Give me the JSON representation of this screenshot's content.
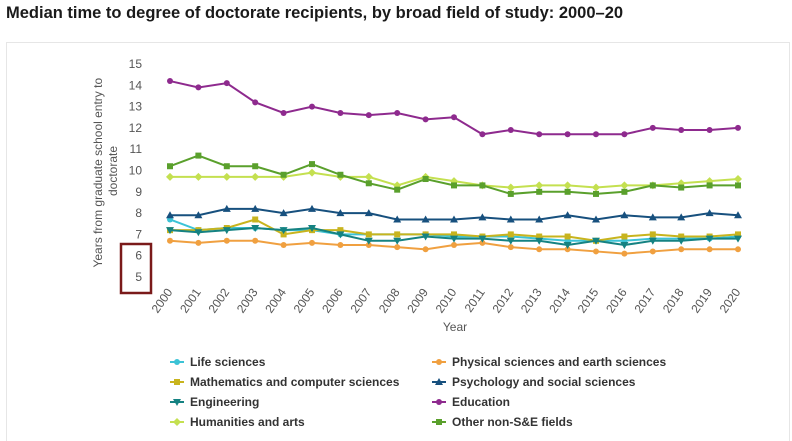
{
  "page": {
    "title": "Median time to degree of doctorate recipients, by broad field of study: 2000–20"
  },
  "chart_data": {
    "type": "line",
    "title": "Median time to degree of doctorate recipients, by broad field of study: 2000–20",
    "xlabel": "Year",
    "ylabel": "Years from graduate school entry to doctorate",
    "ylim": [
      5,
      15
    ],
    "yticks": [
      5,
      6,
      7,
      8,
      9,
      10,
      11,
      12,
      13,
      14,
      15
    ],
    "grid": false,
    "legend_position": "bottom",
    "x": [
      "2000",
      "2001",
      "2002",
      "2003",
      "2004",
      "2005",
      "2006",
      "2007",
      "2008",
      "2009",
      "2010",
      "2011",
      "2012",
      "2013",
      "2014",
      "2015",
      "2016",
      "2017",
      "2018",
      "2019",
      "2020"
    ],
    "series": [
      {
        "name": "Life sciences",
        "color": "#3cc3d6",
        "marker": "circle",
        "values": [
          7.7,
          7.2,
          7.3,
          7.3,
          7.2,
          7.2,
          7.0,
          7.0,
          7.0,
          7.0,
          6.9,
          6.9,
          6.9,
          6.8,
          6.7,
          6.7,
          6.7,
          6.8,
          6.8,
          6.8,
          6.9
        ]
      },
      {
        "name": "Physical sciences and earth sciences",
        "color": "#f0a040",
        "marker": "circle",
        "values": [
          6.7,
          6.6,
          6.7,
          6.7,
          6.5,
          6.6,
          6.5,
          6.5,
          6.4,
          6.3,
          6.5,
          6.6,
          6.4,
          6.3,
          6.3,
          6.2,
          6.1,
          6.2,
          6.3,
          6.3,
          6.3
        ]
      },
      {
        "name": "Mathematics and computer sciences",
        "color": "#c8b41e",
        "marker": "square",
        "values": [
          7.2,
          7.2,
          7.3,
          7.7,
          7.0,
          7.2,
          7.2,
          7.0,
          7.0,
          7.0,
          7.0,
          6.9,
          7.0,
          6.9,
          6.9,
          6.7,
          6.9,
          7.0,
          6.9,
          6.9,
          7.0
        ]
      },
      {
        "name": "Psychology and social sciences",
        "color": "#17507e",
        "marker": "triangle-up",
        "values": [
          7.9,
          7.9,
          8.2,
          8.2,
          8.0,
          8.2,
          8.0,
          8.0,
          7.7,
          7.7,
          7.7,
          7.8,
          7.7,
          7.7,
          7.9,
          7.7,
          7.9,
          7.8,
          7.8,
          8.0,
          7.9
        ]
      },
      {
        "name": "Engineering",
        "color": "#158282",
        "marker": "triangle-down",
        "values": [
          7.2,
          7.1,
          7.2,
          7.3,
          7.2,
          7.3,
          7.0,
          6.7,
          6.7,
          6.9,
          6.8,
          6.8,
          6.7,
          6.7,
          6.5,
          6.7,
          6.5,
          6.7,
          6.7,
          6.8,
          6.8
        ]
      },
      {
        "name": "Education",
        "color": "#8e2a8e",
        "marker": "circle",
        "values": [
          14.2,
          13.9,
          14.1,
          13.2,
          12.7,
          13.0,
          12.7,
          12.6,
          12.7,
          12.4,
          12.5,
          11.7,
          11.9,
          11.7,
          11.7,
          11.7,
          11.7,
          12.0,
          11.9,
          11.9,
          12.0
        ]
      },
      {
        "name": "Humanities and arts",
        "color": "#c4e050",
        "marker": "diamond",
        "values": [
          9.7,
          9.7,
          9.7,
          9.7,
          9.7,
          9.9,
          9.7,
          9.7,
          9.3,
          9.7,
          9.5,
          9.3,
          9.2,
          9.3,
          9.3,
          9.2,
          9.3,
          9.3,
          9.4,
          9.5,
          9.6
        ]
      },
      {
        "name": "Other non-S&E fields",
        "color": "#5aa02c",
        "marker": "square",
        "values": [
          10.2,
          10.7,
          10.2,
          10.2,
          9.8,
          10.3,
          9.8,
          9.4,
          9.1,
          9.6,
          9.3,
          9.3,
          8.9,
          9.0,
          9.0,
          8.9,
          9.0,
          9.3,
          9.2,
          9.3,
          9.3
        ]
      }
    ]
  },
  "overlay": {
    "highlight_color": "#7a1a1a"
  }
}
